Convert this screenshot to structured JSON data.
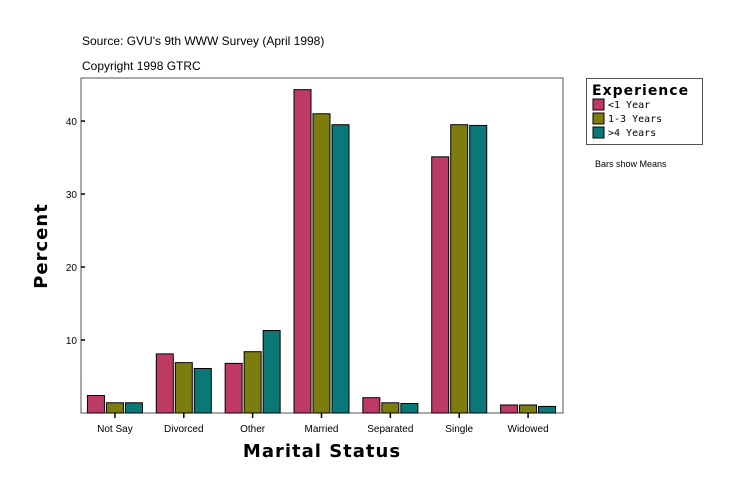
{
  "chart_data": {
    "type": "bar",
    "source": "Source: GVU's 9th WWW Survey (April 1998)",
    "copyright": "Copyright 1998 GTRC",
    "xlabel": "Marital Status",
    "ylabel": "Percent",
    "ylim": [
      0,
      45.9
    ],
    "yticks": [
      10,
      20,
      30,
      40
    ],
    "grid": false,
    "categories": [
      "Not Say",
      "Divorced",
      "Other",
      "Married",
      "Separated",
      "Single",
      "Widowed"
    ],
    "legend": {
      "title": "Experience",
      "placement": "right"
    },
    "note": "Bars show Means",
    "series": [
      {
        "name": "<1 Year",
        "color": "#bd3a64",
        "values": [
          2.4,
          8.1,
          6.8,
          44.3,
          2.1,
          35.1,
          1.1
        ]
      },
      {
        "name": "1-3 Years",
        "color": "#7d7d0f",
        "values": [
          1.4,
          6.9,
          8.4,
          41.0,
          1.4,
          39.5,
          1.1
        ]
      },
      {
        "name": ">4 Years",
        "color": "#0b7878",
        "values": [
          1.4,
          6.1,
          11.3,
          39.5,
          1.3,
          39.4,
          0.9
        ]
      }
    ]
  }
}
